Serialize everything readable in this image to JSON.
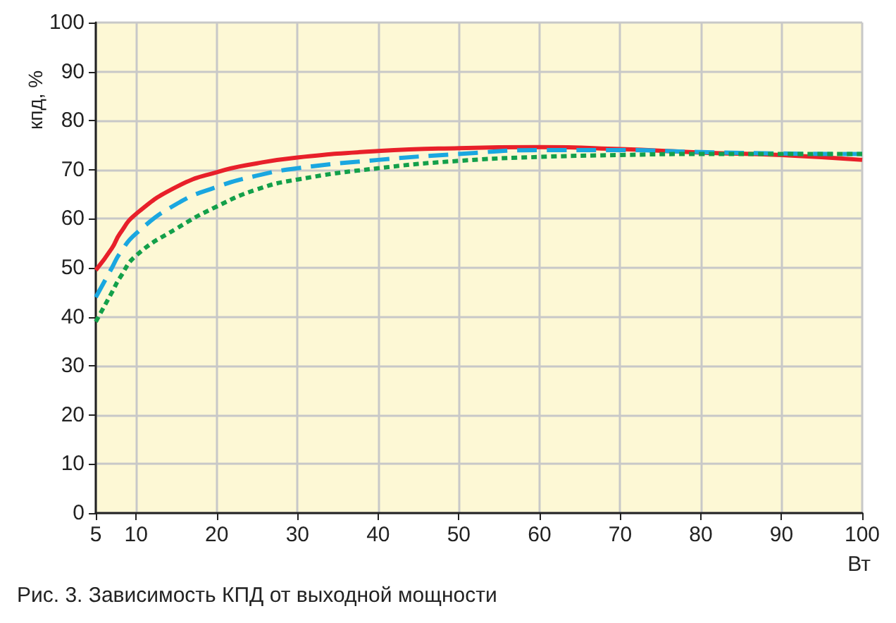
{
  "chart_data": {
    "type": "line",
    "ylabel": "кпд, %",
    "xlabel": "Вт",
    "annotations": [
      "Рис. 3. Зависимость КПД от выходной мощности"
    ],
    "x": [
      5,
      7,
      8,
      10,
      15,
      20,
      25,
      30,
      40,
      50,
      60,
      70,
      80,
      90,
      100
    ],
    "series": [
      {
        "color": "#e8202a",
        "line_style": "solid",
        "values": [
          49.5,
          54,
          57,
          61,
          66.5,
          69.5,
          71.3,
          72.5,
          73.8,
          74.4,
          74.6,
          74.2,
          73.5,
          73,
          72
        ]
      },
      {
        "color": "#1aa7e0",
        "line_style": "dashed",
        "values": [
          44,
          50,
          53,
          57,
          63,
          66.5,
          68.8,
          70.3,
          72,
          73.2,
          74,
          74,
          73.6,
          73.3,
          73.2
        ]
      },
      {
        "color": "#13a04a",
        "line_style": "dotted",
        "values": [
          39,
          45,
          48,
          52.5,
          58,
          62.5,
          66,
          68,
          70.3,
          71.8,
          72.6,
          73,
          73.2,
          73.2,
          73.2
        ]
      }
    ],
    "xlim": [
      5,
      100
    ],
    "xticks": [
      5,
      10,
      20,
      30,
      40,
      50,
      60,
      70,
      80,
      90,
      100
    ],
    "ylim": [
      0,
      100
    ],
    "yticks": [
      0,
      10,
      20,
      30,
      40,
      50,
      60,
      70,
      80,
      90,
      100
    ],
    "grid": true,
    "marker": "none"
  }
}
